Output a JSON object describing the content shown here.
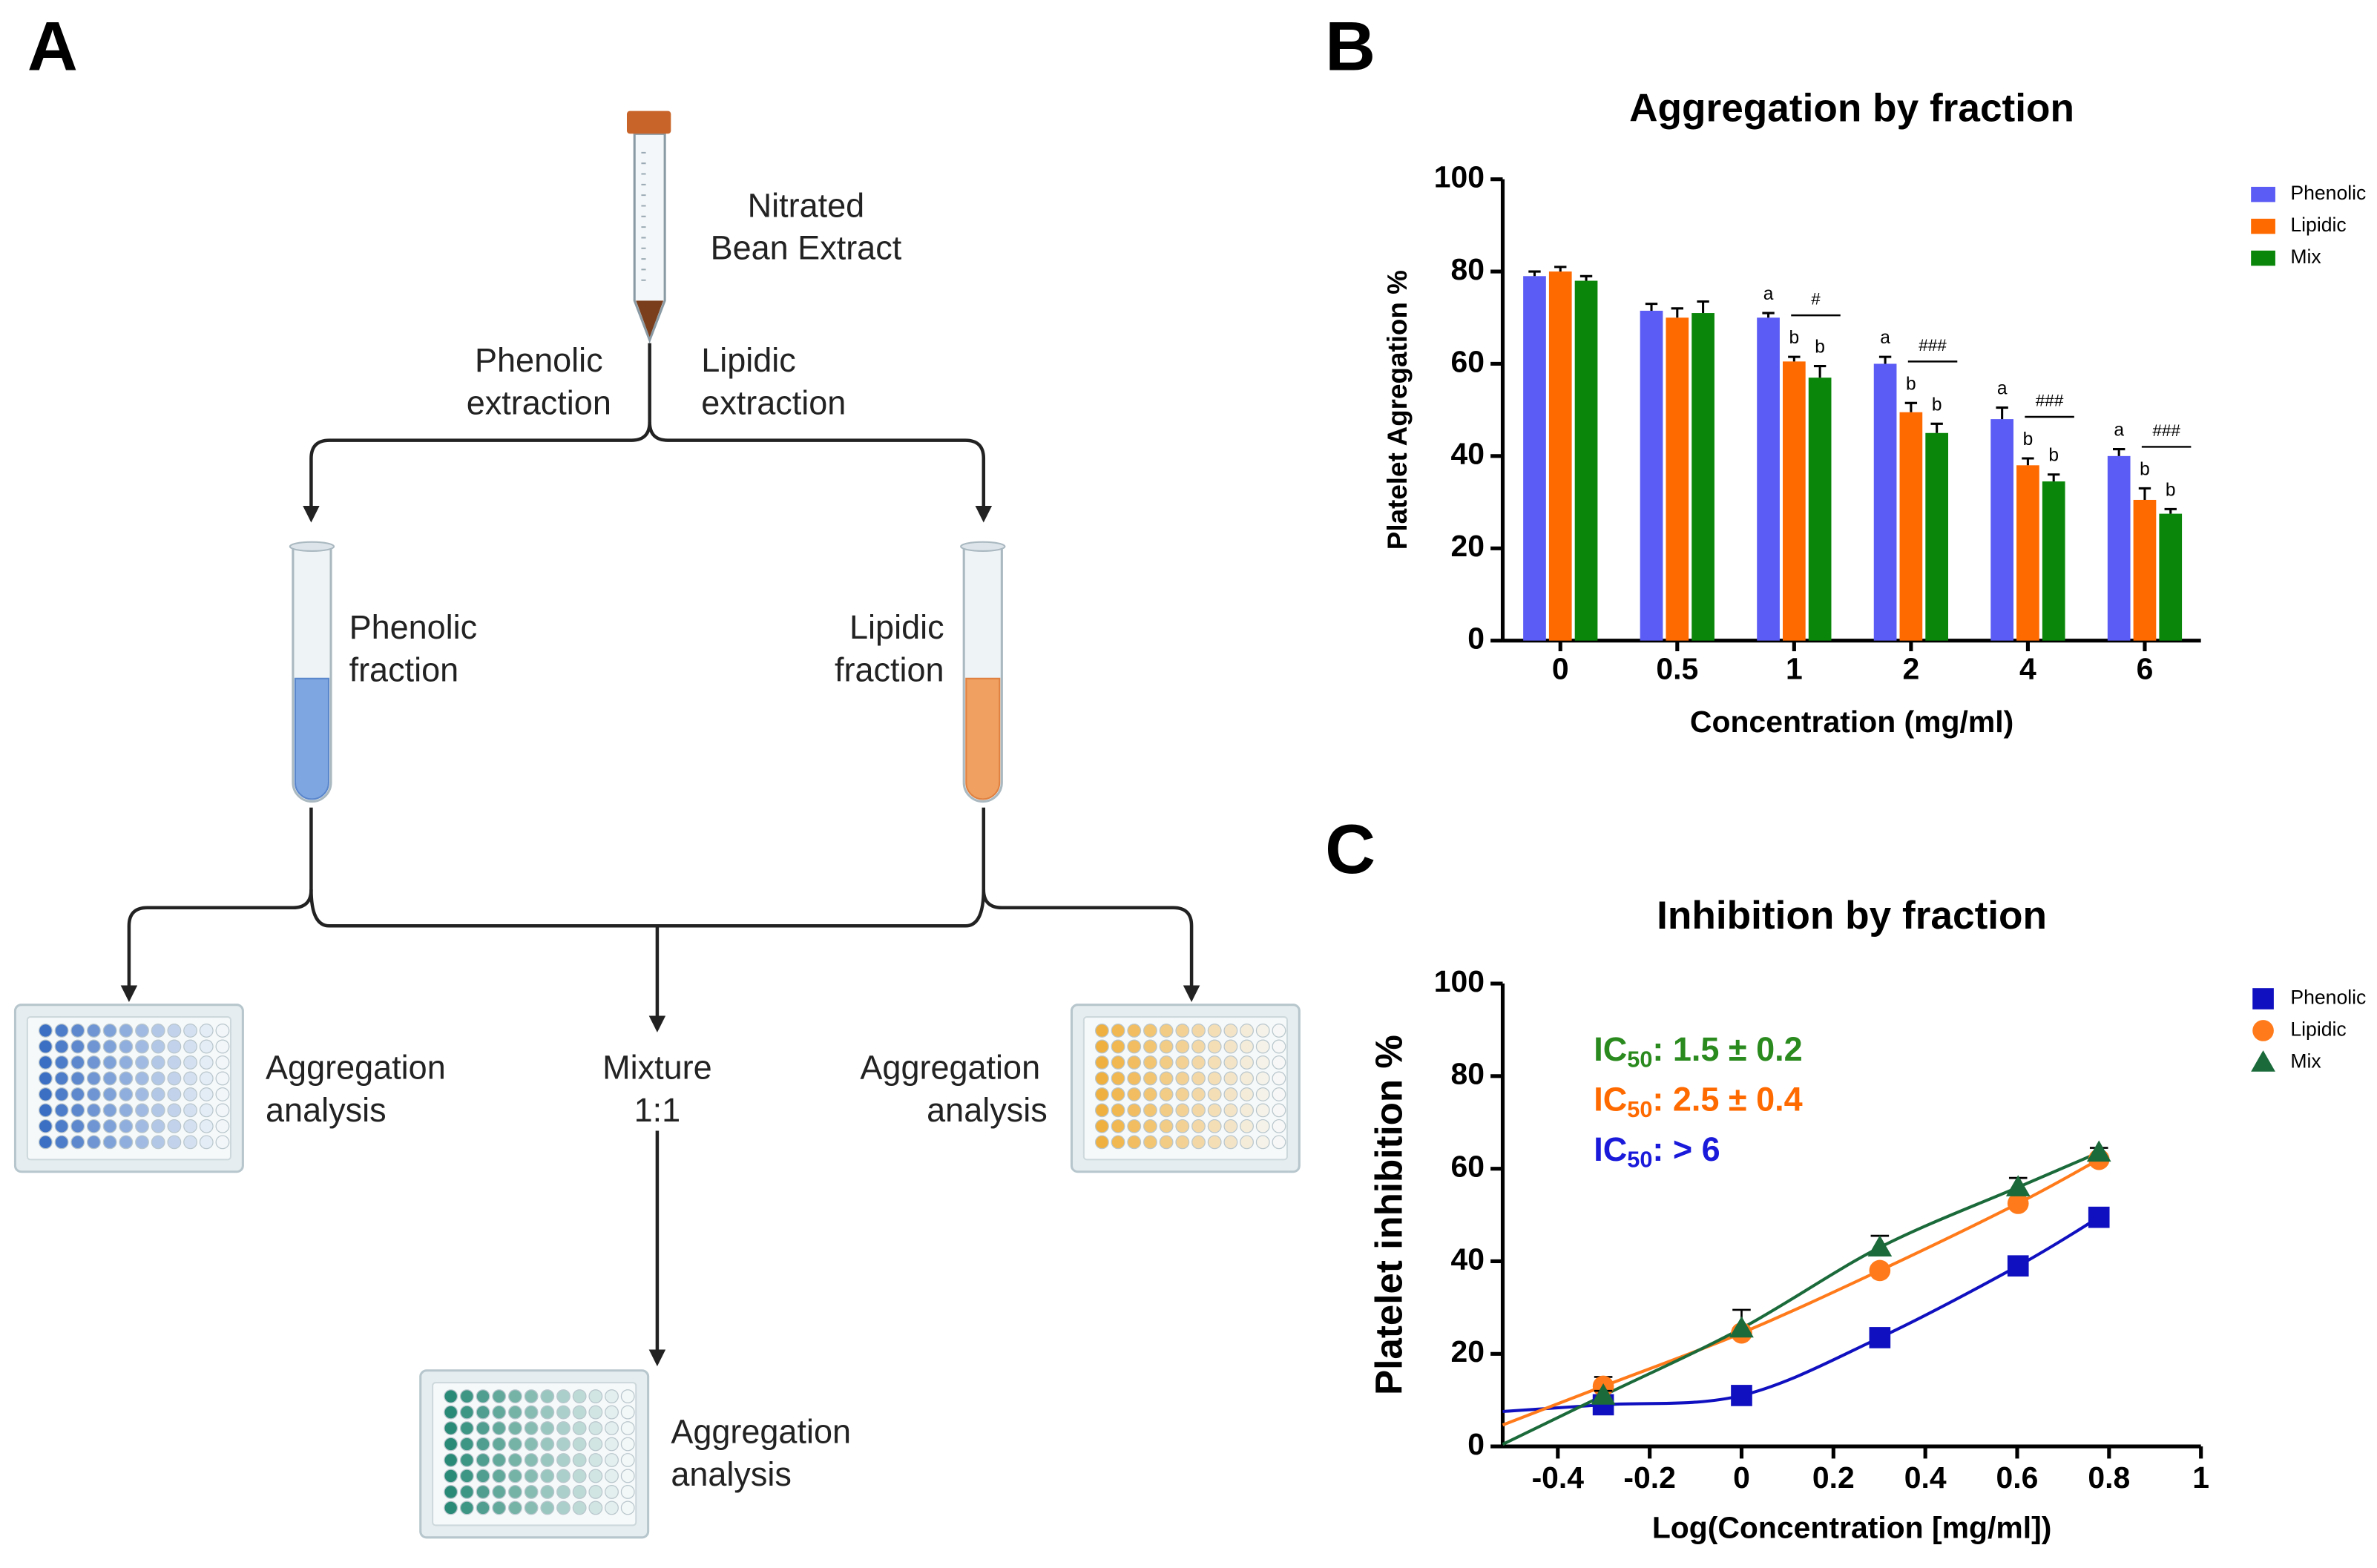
{
  "diagram": {
    "panel_label": "A",
    "nodes": [
      {
        "lines": [
          "Nitrated",
          "Bean Extract"
        ]
      },
      {
        "lines": [
          "Phenolic",
          "extraction"
        ]
      },
      {
        "lines": [
          "Lipidic",
          "extraction"
        ]
      },
      {
        "lines": [
          "Phenolic",
          "fraction"
        ]
      },
      {
        "lines": [
          "Lipidic",
          "fraction"
        ]
      },
      {
        "lines": [
          "Aggregation",
          "analysis"
        ]
      },
      {
        "lines": [
          "Mixture",
          "1:1"
        ]
      },
      {
        "lines": [
          "Aggregation",
          "analysis"
        ]
      },
      {
        "lines": [
          "Aggregation",
          "analysis"
        ]
      }
    ]
  },
  "chart_data": [
    {
      "type": "bar",
      "panel_label": "B",
      "title": "Aggregation by fraction",
      "x_label": "Concentration (mg/ml)",
      "y_label": "Platelet Agregation %",
      "categories": [
        "0",
        "0.5",
        "1",
        "2",
        "4",
        "6"
      ],
      "series": [
        {
          "name": "Phenolic",
          "color": "#5b5bf5",
          "values": [
            79,
            71.5,
            70,
            60,
            48,
            40
          ],
          "errors": [
            1,
            1.5,
            1,
            1.5,
            2.5,
            1.5
          ],
          "labels": [
            null,
            null,
            "a",
            "a",
            "a",
            "a"
          ]
        },
        {
          "name": "Lipidic",
          "color": "#ff6a00",
          "values": [
            80,
            70,
            60.5,
            49.5,
            38,
            30.5
          ],
          "errors": [
            1,
            2,
            1,
            2,
            1.5,
            2.5
          ],
          "labels": [
            null,
            null,
            "b",
            "b",
            "b",
            "b"
          ]
        },
        {
          "name": "Mix",
          "color": "#0a870a",
          "values": [
            78,
            71,
            57,
            45,
            34.5,
            27.5
          ],
          "errors": [
            1,
            2.5,
            2.5,
            2,
            1.5,
            1
          ],
          "labels": [
            null,
            null,
            "b",
            "b",
            "b",
            "b"
          ]
        }
      ],
      "significance": [
        null,
        null,
        "#",
        "###",
        "###",
        "###"
      ],
      "ylim": [
        0,
        100
      ],
      "yticks": [
        0,
        20,
        40,
        60,
        80,
        100
      ],
      "legend": "right"
    },
    {
      "type": "scatter",
      "panel_label": "C",
      "title": "Inhibition by fraction",
      "x_label": "Log(Concentration [mg/ml])",
      "y_label": "Platelet inhibition %",
      "x": [
        -0.301,
        0,
        0.301,
        0.602,
        0.778
      ],
      "series": [
        {
          "name": "Phenolic",
          "color": "#1010c0",
          "marker": "square",
          "values": [
            9,
            11,
            23.5,
            39,
            49.5
          ],
          "errors": [
            0.5,
            1,
            1,
            2,
            0.5
          ]
        },
        {
          "name": "Lipidic",
          "color": "#ff7a1a",
          "marker": "circle",
          "values": [
            13,
            24.5,
            38,
            52.5,
            62
          ],
          "errors": [
            2,
            1,
            1,
            1,
            1
          ]
        },
        {
          "name": "Mix",
          "color": "#1a6a3a",
          "marker": "triangle",
          "values": [
            11,
            25.5,
            43,
            56,
            63.5
          ],
          "errors": [
            1,
            4,
            2.5,
            2,
            1
          ]
        }
      ],
      "annotations": [
        {
          "main": "IC",
          "sub": "50",
          "rest": ": 1.5 ± 0.2",
          "color": "#2a8a1e"
        },
        {
          "main": "IC",
          "sub": "50",
          "rest": ": 2.5 ± 0.4",
          "color": "#ff6a00"
        },
        {
          "main": "IC",
          "sub": "50",
          "rest": ": > 6",
          "color": "#1a1adb"
        }
      ],
      "xlim": [
        -0.52,
        1
      ],
      "xticks": [
        -0.4,
        -0.2,
        0,
        0.2,
        0.4,
        0.6,
        0.8,
        1
      ],
      "ylim": [
        0,
        100
      ],
      "yticks": [
        0,
        20,
        40,
        60,
        80,
        100
      ],
      "legend": "right"
    }
  ]
}
